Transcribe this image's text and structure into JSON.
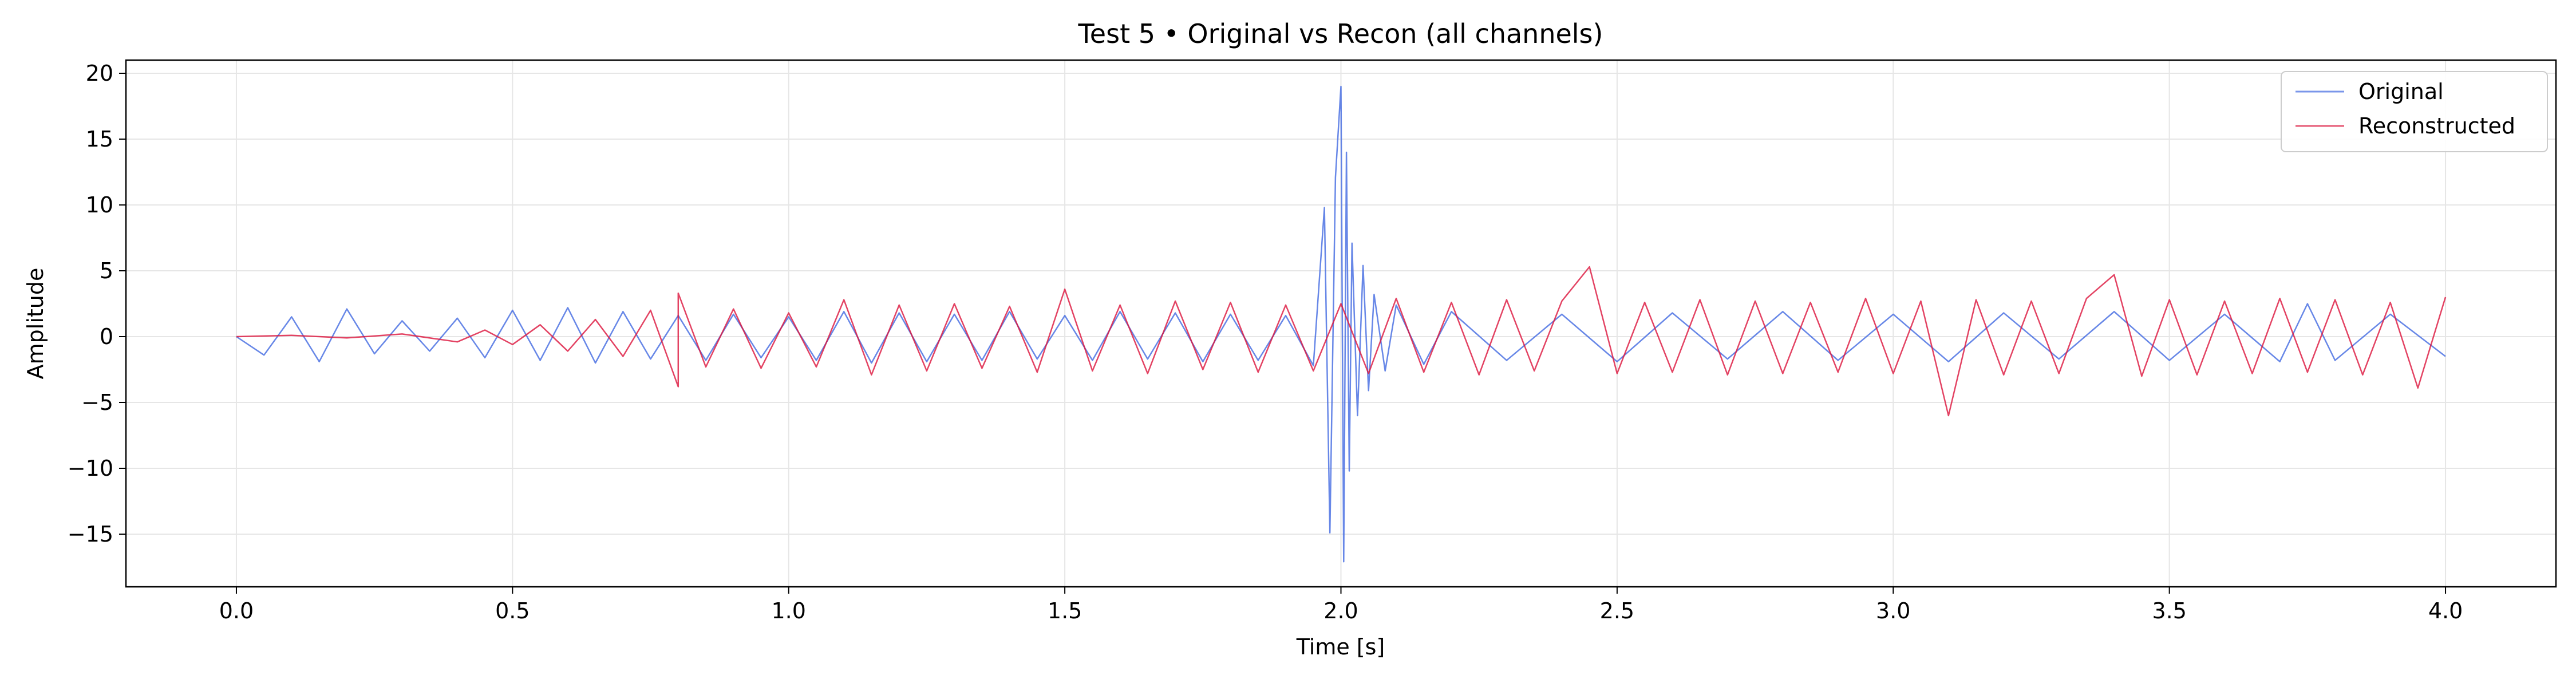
{
  "chart_data": {
    "type": "line",
    "title": "Test 5 • Original vs Recon (all channels)",
    "xlabel": "Time [s]",
    "ylabel": "Amplitude",
    "xlim": [
      -0.2,
      4.2
    ],
    "ylim": [
      -19,
      21
    ],
    "x_ticks": [
      0.0,
      0.5,
      1.0,
      1.5,
      2.0,
      2.5,
      3.0,
      3.5,
      4.0
    ],
    "x_tick_labels": [
      "0.0",
      "0.5",
      "1.0",
      "1.5",
      "2.0",
      "2.5",
      "3.0",
      "3.5",
      "4.0"
    ],
    "y_ticks": [
      -15,
      -10,
      -5,
      0,
      5,
      10,
      15,
      20
    ],
    "y_tick_labels": [
      "−15",
      "−10",
      "−5",
      "0",
      "5",
      "10",
      "15",
      "20"
    ],
    "grid": true,
    "legend_position": "top-right",
    "series": [
      {
        "name": "Original",
        "color": "#4169e1",
        "points": [
          [
            0.0,
            0.0
          ],
          [
            0.05,
            -1.4
          ],
          [
            0.1,
            1.5
          ],
          [
            0.15,
            -1.9
          ],
          [
            0.2,
            2.1
          ],
          [
            0.25,
            -1.3
          ],
          [
            0.3,
            1.2
          ],
          [
            0.35,
            -1.1
          ],
          [
            0.4,
            1.4
          ],
          [
            0.45,
            -1.6
          ],
          [
            0.5,
            2.0
          ],
          [
            0.55,
            -1.8
          ],
          [
            0.6,
            2.2
          ],
          [
            0.65,
            -2.0
          ],
          [
            0.7,
            1.9
          ],
          [
            0.75,
            -1.7
          ],
          [
            0.8,
            1.6
          ],
          [
            0.85,
            -1.8
          ],
          [
            0.9,
            1.7
          ],
          [
            0.95,
            -1.6
          ],
          [
            1.0,
            1.5
          ],
          [
            1.05,
            -1.8
          ],
          [
            1.1,
            1.9
          ],
          [
            1.15,
            -2.0
          ],
          [
            1.2,
            1.8
          ],
          [
            1.25,
            -1.9
          ],
          [
            1.3,
            1.7
          ],
          [
            1.35,
            -1.8
          ],
          [
            1.4,
            1.9
          ],
          [
            1.45,
            -1.7
          ],
          [
            1.5,
            1.6
          ],
          [
            1.55,
            -1.8
          ],
          [
            1.6,
            1.9
          ],
          [
            1.65,
            -1.7
          ],
          [
            1.7,
            1.8
          ],
          [
            1.75,
            -1.9
          ],
          [
            1.8,
            1.7
          ],
          [
            1.85,
            -1.8
          ],
          [
            1.9,
            1.6
          ],
          [
            1.95,
            -2.2
          ],
          [
            1.97,
            9.8
          ],
          [
            1.98,
            -14.9
          ],
          [
            1.99,
            12.1
          ],
          [
            2.0,
            19.0
          ],
          [
            2.005,
            -17.1
          ],
          [
            2.01,
            14.0
          ],
          [
            2.015,
            -10.2
          ],
          [
            2.02,
            7.1
          ],
          [
            2.03,
            -6.0
          ],
          [
            2.04,
            5.4
          ],
          [
            2.05,
            -4.1
          ],
          [
            2.06,
            3.2
          ],
          [
            2.08,
            -2.6
          ],
          [
            2.1,
            2.4
          ],
          [
            2.15,
            -2.1
          ],
          [
            2.2,
            1.9
          ],
          [
            2.3,
            -1.8
          ],
          [
            2.4,
            1.7
          ],
          [
            2.5,
            -1.9
          ],
          [
            2.6,
            1.8
          ],
          [
            2.7,
            -1.7
          ],
          [
            2.8,
            1.9
          ],
          [
            2.9,
            -1.8
          ],
          [
            3.0,
            1.7
          ],
          [
            3.1,
            -1.9
          ],
          [
            3.2,
            1.8
          ],
          [
            3.3,
            -1.7
          ],
          [
            3.4,
            1.9
          ],
          [
            3.5,
            -1.8
          ],
          [
            3.6,
            1.7
          ],
          [
            3.7,
            -1.9
          ],
          [
            3.75,
            2.5
          ],
          [
            3.8,
            -1.8
          ],
          [
            3.9,
            1.7
          ],
          [
            4.0,
            -1.5
          ]
        ]
      },
      {
        "name": "Reconstructed",
        "color": "#dc143c",
        "points": [
          [
            0.0,
            0.0
          ],
          [
            0.1,
            0.1
          ],
          [
            0.2,
            -0.1
          ],
          [
            0.3,
            0.2
          ],
          [
            0.4,
            -0.4
          ],
          [
            0.45,
            0.5
          ],
          [
            0.5,
            -0.6
          ],
          [
            0.55,
            0.9
          ],
          [
            0.6,
            -1.1
          ],
          [
            0.65,
            1.3
          ],
          [
            0.7,
            -1.5
          ],
          [
            0.75,
            2.0
          ],
          [
            0.8,
            -3.8
          ],
          [
            0.8,
            3.3
          ],
          [
            0.85,
            -2.3
          ],
          [
            0.9,
            2.1
          ],
          [
            0.95,
            -2.4
          ],
          [
            1.0,
            1.8
          ],
          [
            1.05,
            -2.3
          ],
          [
            1.1,
            2.8
          ],
          [
            1.15,
            -2.9
          ],
          [
            1.2,
            2.4
          ],
          [
            1.25,
            -2.6
          ],
          [
            1.3,
            2.5
          ],
          [
            1.35,
            -2.4
          ],
          [
            1.4,
            2.3
          ],
          [
            1.45,
            -2.7
          ],
          [
            1.5,
            3.6
          ],
          [
            1.55,
            -2.6
          ],
          [
            1.6,
            2.4
          ],
          [
            1.65,
            -2.8
          ],
          [
            1.7,
            2.7
          ],
          [
            1.75,
            -2.5
          ],
          [
            1.8,
            2.6
          ],
          [
            1.85,
            -2.7
          ],
          [
            1.9,
            2.4
          ],
          [
            1.95,
            -2.6
          ],
          [
            2.0,
            2.5
          ],
          [
            2.05,
            -2.8
          ],
          [
            2.1,
            2.9
          ],
          [
            2.15,
            -2.7
          ],
          [
            2.2,
            2.6
          ],
          [
            2.25,
            -2.9
          ],
          [
            2.3,
            2.8
          ],
          [
            2.35,
            -2.6
          ],
          [
            2.4,
            2.7
          ],
          [
            2.45,
            5.3
          ],
          [
            2.5,
            -2.8
          ],
          [
            2.55,
            2.6
          ],
          [
            2.6,
            -2.7
          ],
          [
            2.65,
            2.8
          ],
          [
            2.7,
            -2.9
          ],
          [
            2.75,
            2.7
          ],
          [
            2.8,
            -2.8
          ],
          [
            2.85,
            2.6
          ],
          [
            2.9,
            -2.7
          ],
          [
            2.95,
            2.9
          ],
          [
            3.0,
            -2.8
          ],
          [
            3.05,
            2.7
          ],
          [
            3.1,
            -6.0
          ],
          [
            3.15,
            2.8
          ],
          [
            3.2,
            -2.9
          ],
          [
            3.25,
            2.7
          ],
          [
            3.3,
            -2.8
          ],
          [
            3.35,
            2.9
          ],
          [
            3.4,
            4.7
          ],
          [
            3.45,
            -3.0
          ],
          [
            3.5,
            2.8
          ],
          [
            3.55,
            -2.9
          ],
          [
            3.6,
            2.7
          ],
          [
            3.65,
            -2.8
          ],
          [
            3.7,
            2.9
          ],
          [
            3.75,
            -2.7
          ],
          [
            3.8,
            2.8
          ],
          [
            3.85,
            -2.9
          ],
          [
            3.9,
            2.6
          ],
          [
            3.95,
            -3.9
          ],
          [
            4.0,
            3.0
          ]
        ]
      }
    ]
  }
}
